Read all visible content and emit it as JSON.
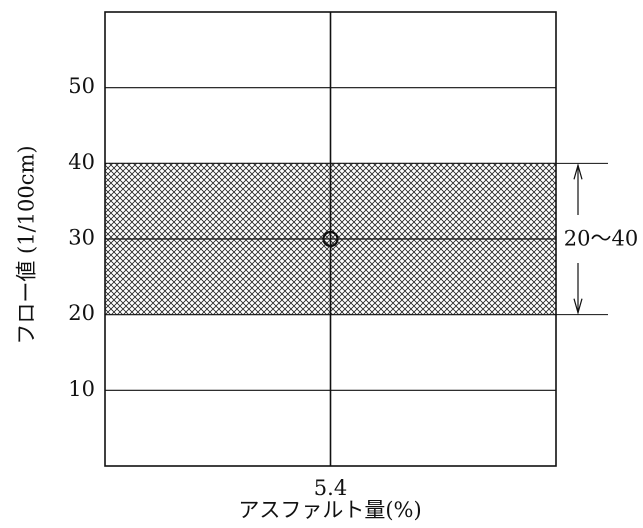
{
  "chart_data": {
    "type": "line",
    "title": "",
    "xlabel": "アスファルト量(%)",
    "ylabel": "フロー値 (1/100cm)",
    "ylim": [
      0,
      60
    ],
    "xlim": [
      4.4,
      6.4
    ],
    "yticks": [
      10,
      20,
      30,
      40,
      50
    ],
    "xticks": [
      5.4
    ],
    "xtick_labels": [
      "5.4"
    ],
    "grid": "horizontal lines at each y tick; vertical center line at x tick",
    "shaded_band": {
      "y_from": 20,
      "y_to": 40,
      "pattern": "cross-hatch",
      "label": "20〜40"
    },
    "series": [
      {
        "marker": "open-circle",
        "points": [
          {
            "x": 5.4,
            "y": 30
          }
        ]
      }
    ]
  },
  "colors": {
    "line": "#111111",
    "hatch": "#222222",
    "background": "#ffffff"
  }
}
